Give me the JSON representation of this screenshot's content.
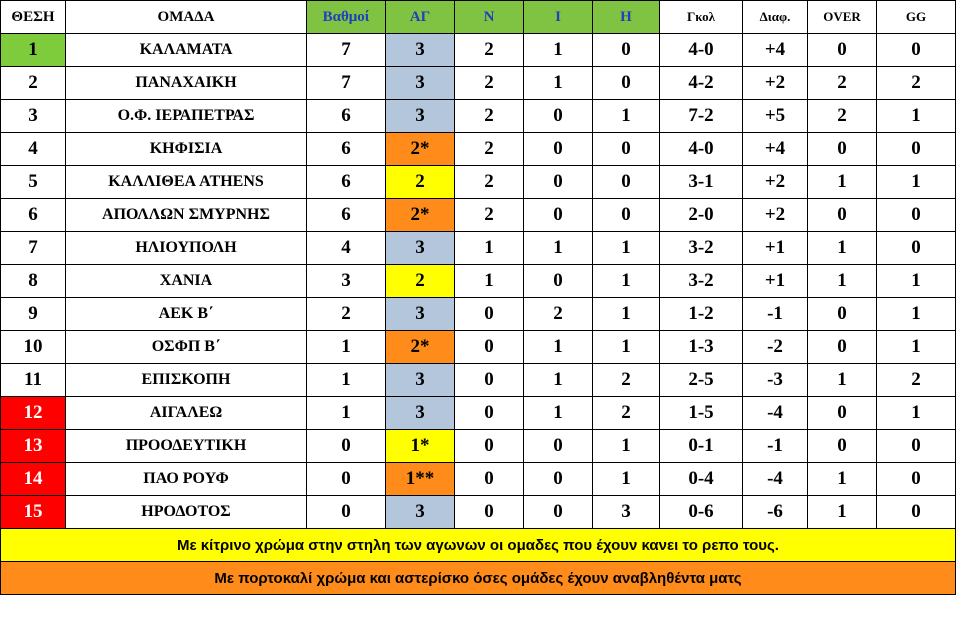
{
  "header": {
    "pos": "ΘΕΣΗ",
    "team": "ΟΜΑΔΑ",
    "points": "Βαθμοί",
    "played": "ΑΓ",
    "wins": "Ν",
    "draws": "Ι",
    "losses": "Η",
    "goals": "Γκολ",
    "diff": "Διαφ.",
    "over": "OVER",
    "gg": "GG"
  },
  "rows": [
    {
      "pos": "1",
      "team": "ΚΑΛΑΜΑΤΑ",
      "points": "7",
      "played": "3",
      "wins": "2",
      "draws": "1",
      "losses": "0",
      "goals": "4-0",
      "diff": "+4",
      "over": "0",
      "gg": "0"
    },
    {
      "pos": "2",
      "team": "ΠΑΝΑΧΑΙΚΗ",
      "points": "7",
      "played": "3",
      "wins": "2",
      "draws": "1",
      "losses": "0",
      "goals": "4-2",
      "diff": "+2",
      "over": "2",
      "gg": "2"
    },
    {
      "pos": "3",
      "team": "Ο.Φ. ΙΕΡΑΠΕΤΡΑΣ",
      "points": "6",
      "played": "3",
      "wins": "2",
      "draws": "0",
      "losses": "1",
      "goals": "7-2",
      "diff": "+5",
      "over": "2",
      "gg": "1"
    },
    {
      "pos": "4",
      "team": "ΚΗΦΙΣΙΑ",
      "points": "6",
      "played": "2*",
      "wins": "2",
      "draws": "0",
      "losses": "0",
      "goals": "4-0",
      "diff": "+4",
      "over": "0",
      "gg": "0"
    },
    {
      "pos": "5",
      "team": "ΚΑΛΛΙΘΕΑ ATHENS",
      "points": "6",
      "played": "2",
      "wins": "2",
      "draws": "0",
      "losses": "0",
      "goals": "3-1",
      "diff": "+2",
      "over": "1",
      "gg": "1"
    },
    {
      "pos": "6",
      "team": "ΑΠΟΛΛΩΝ ΣΜΥΡΝΗΣ",
      "points": "6",
      "played": "2*",
      "wins": "2",
      "draws": "0",
      "losses": "0",
      "goals": "2-0",
      "diff": "+2",
      "over": "0",
      "gg": "0"
    },
    {
      "pos": "7",
      "team": "ΗΛΙΟΥΠΟΛΗ",
      "points": "4",
      "played": "3",
      "wins": "1",
      "draws": "1",
      "losses": "1",
      "goals": "3-2",
      "diff": "+1",
      "over": "1",
      "gg": "0"
    },
    {
      "pos": "8",
      "team": "ΧΑΝΙΑ",
      "points": "3",
      "played": "2",
      "wins": "1",
      "draws": "0",
      "losses": "1",
      "goals": "3-2",
      "diff": "+1",
      "over": "1",
      "gg": "1"
    },
    {
      "pos": "9",
      "team": "ΑΕΚ Β΄",
      "points": "2",
      "played": "3",
      "wins": "0",
      "draws": "2",
      "losses": "1",
      "goals": "1-2",
      "diff": "-1",
      "over": "0",
      "gg": "1"
    },
    {
      "pos": "10",
      "team": "ΟΣΦΠ Β΄",
      "points": "1",
      "played": "2*",
      "wins": "0",
      "draws": "1",
      "losses": "1",
      "goals": "1-3",
      "diff": "-2",
      "over": "0",
      "gg": "1"
    },
    {
      "pos": "11",
      "team": "ΕΠΙΣΚΟΠΗ",
      "points": "1",
      "played": "3",
      "wins": "0",
      "draws": "1",
      "losses": "2",
      "goals": "2-5",
      "diff": "-3",
      "over": "1",
      "gg": "2"
    },
    {
      "pos": "12",
      "team": "ΑΙΓΑΛΕΩ",
      "points": "1",
      "played": "3",
      "wins": "0",
      "draws": "1",
      "losses": "2",
      "goals": "1-5",
      "diff": "-4",
      "over": "0",
      "gg": "1"
    },
    {
      "pos": "13",
      "team": "ΠΡΟΟΔΕΥΤΙΚΗ",
      "points": "0",
      "played": "1*",
      "wins": "0",
      "draws": "0",
      "losses": "1",
      "goals": "0-1",
      "diff": "-1",
      "over": "0",
      "gg": "0"
    },
    {
      "pos": "14",
      "team": "ΠΑΟ ΡΟΥΦ",
      "points": "0",
      "played": "1**",
      "wins": "0",
      "draws": "0",
      "losses": "1",
      "goals": "0-4",
      "diff": "-4",
      "over": "1",
      "gg": "0"
    },
    {
      "pos": "15",
      "team": "ΗΡΟΔΟΤΟΣ",
      "points": "0",
      "played": "3",
      "wins": "0",
      "draws": "0",
      "losses": "3",
      "goals": "0-6",
      "diff": "-6",
      "over": "1",
      "gg": "0"
    }
  ],
  "notes": {
    "yellow": "Με κίτρινο χρώμα στην στηλη των αγωνων οι ομαδες που έχουν κανει το ρεπο τους.",
    "orange": "Με πορτοκαλί χρώμα και αστερίσκο όσες ομάδες έχουν αναβληθέντα ματς"
  },
  "colors": {
    "promotion": "#7ecb3c",
    "relegation": "#ff0000",
    "played_default": "#b4c6dc",
    "played_bye": "#ffff00",
    "played_postponed": "#ff8c1a"
  }
}
